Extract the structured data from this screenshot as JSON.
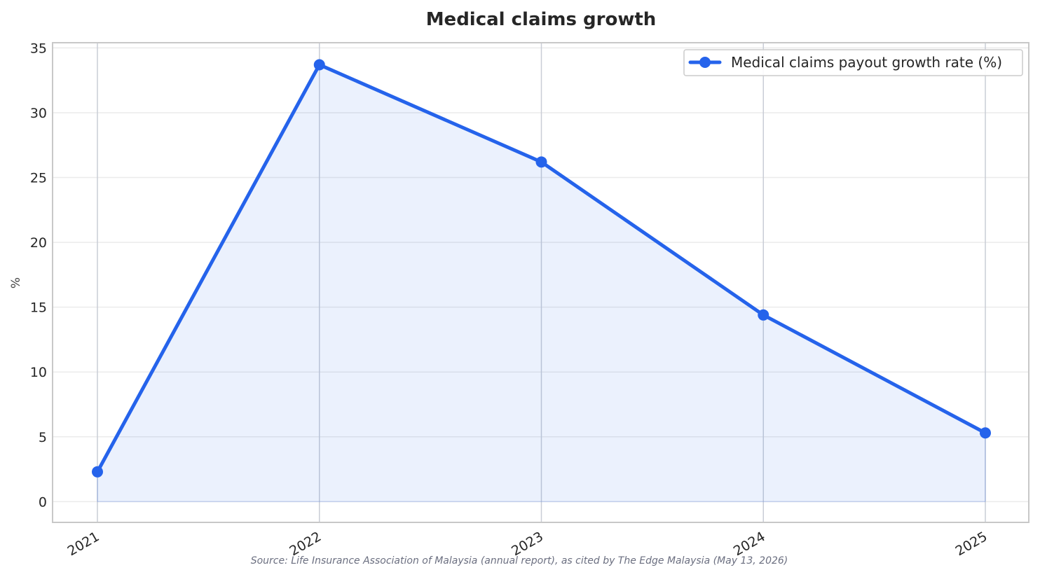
{
  "chart_data": {
    "type": "line",
    "title": "Medical claims growth",
    "xlabel": "",
    "ylabel": "%",
    "categories": [
      "2021",
      "2022",
      "2023",
      "2024",
      "2025"
    ],
    "series": [
      {
        "name": "Medical claims payout growth rate (%)",
        "values": [
          2.3,
          33.7,
          26.2,
          14.4,
          5.3
        ],
        "color": "#2563eb",
        "fill": "area"
      }
    ],
    "ylim": [
      -1.6,
      35.4
    ],
    "yticks": [
      0,
      5,
      10,
      15,
      20,
      25,
      30,
      35
    ],
    "grid": true,
    "legend": "top-right",
    "source": "Source: Life Insurance Association of Malaysia (annual report), as cited by The Edge Malaysia (May 13, 2026)"
  }
}
